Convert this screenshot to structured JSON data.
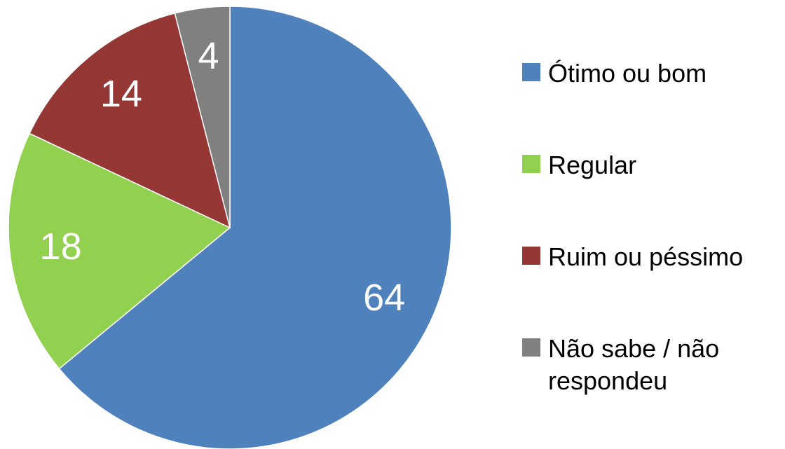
{
  "chart_data": {
    "type": "pie",
    "categories": [
      "Ótimo ou bom",
      "Regular",
      "Ruim ou péssimo",
      "Não sabe / não respondeu"
    ],
    "values": [
      64,
      18,
      14,
      4
    ],
    "colors": [
      "#4f81bd",
      "#92d050",
      "#953735",
      "#808080"
    ],
    "legend": "right"
  }
}
